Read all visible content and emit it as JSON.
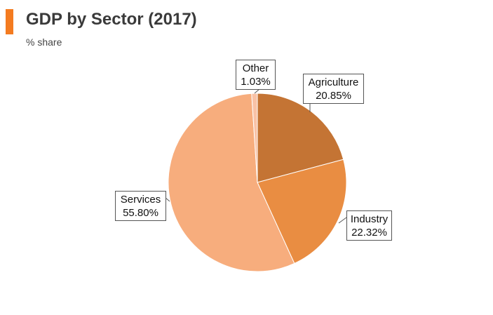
{
  "title": "GDP by Sector (2017)",
  "subtitle": "% share",
  "colors": {
    "accent": "#f47b20",
    "label_border": "#555555",
    "slice_edge": "#ffffff"
  },
  "chart_data": {
    "type": "pie",
    "title": "GDP by Sector (2017)",
    "subtitle": "% share",
    "unit": "%",
    "slices": [
      {
        "label": "Agriculture",
        "value": 20.85,
        "value_text": "20.85%",
        "color": "#c47434"
      },
      {
        "label": "Industry",
        "value": 22.32,
        "value_text": "22.32%",
        "color": "#e98d42"
      },
      {
        "label": "Services",
        "value": 55.8,
        "value_text": "55.80%",
        "color": "#f7ad7d"
      },
      {
        "label": "Other",
        "value": 1.03,
        "value_text": "1.03%",
        "color": "#f9c2a6"
      }
    ]
  }
}
